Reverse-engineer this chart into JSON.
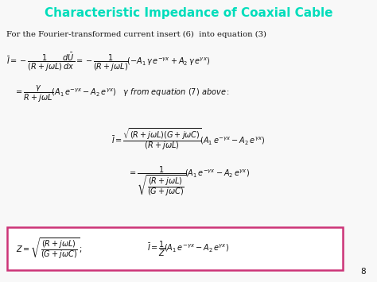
{
  "title": "Characteristic Impedance of Coaxial Cable",
  "title_color": "#00DDBB",
  "title_fontsize": 11,
  "background_color": "#F8F8F8",
  "text_color": "#111111",
  "slide_number": "8",
  "box_color": "#CC3377",
  "subtitle": "For the Fourier-transformed current insert (6)  into equation (3)",
  "subtitle_fontsize": 7.2,
  "eq_fontsize": 7.0,
  "box_facecolor": "#FFFFFF"
}
